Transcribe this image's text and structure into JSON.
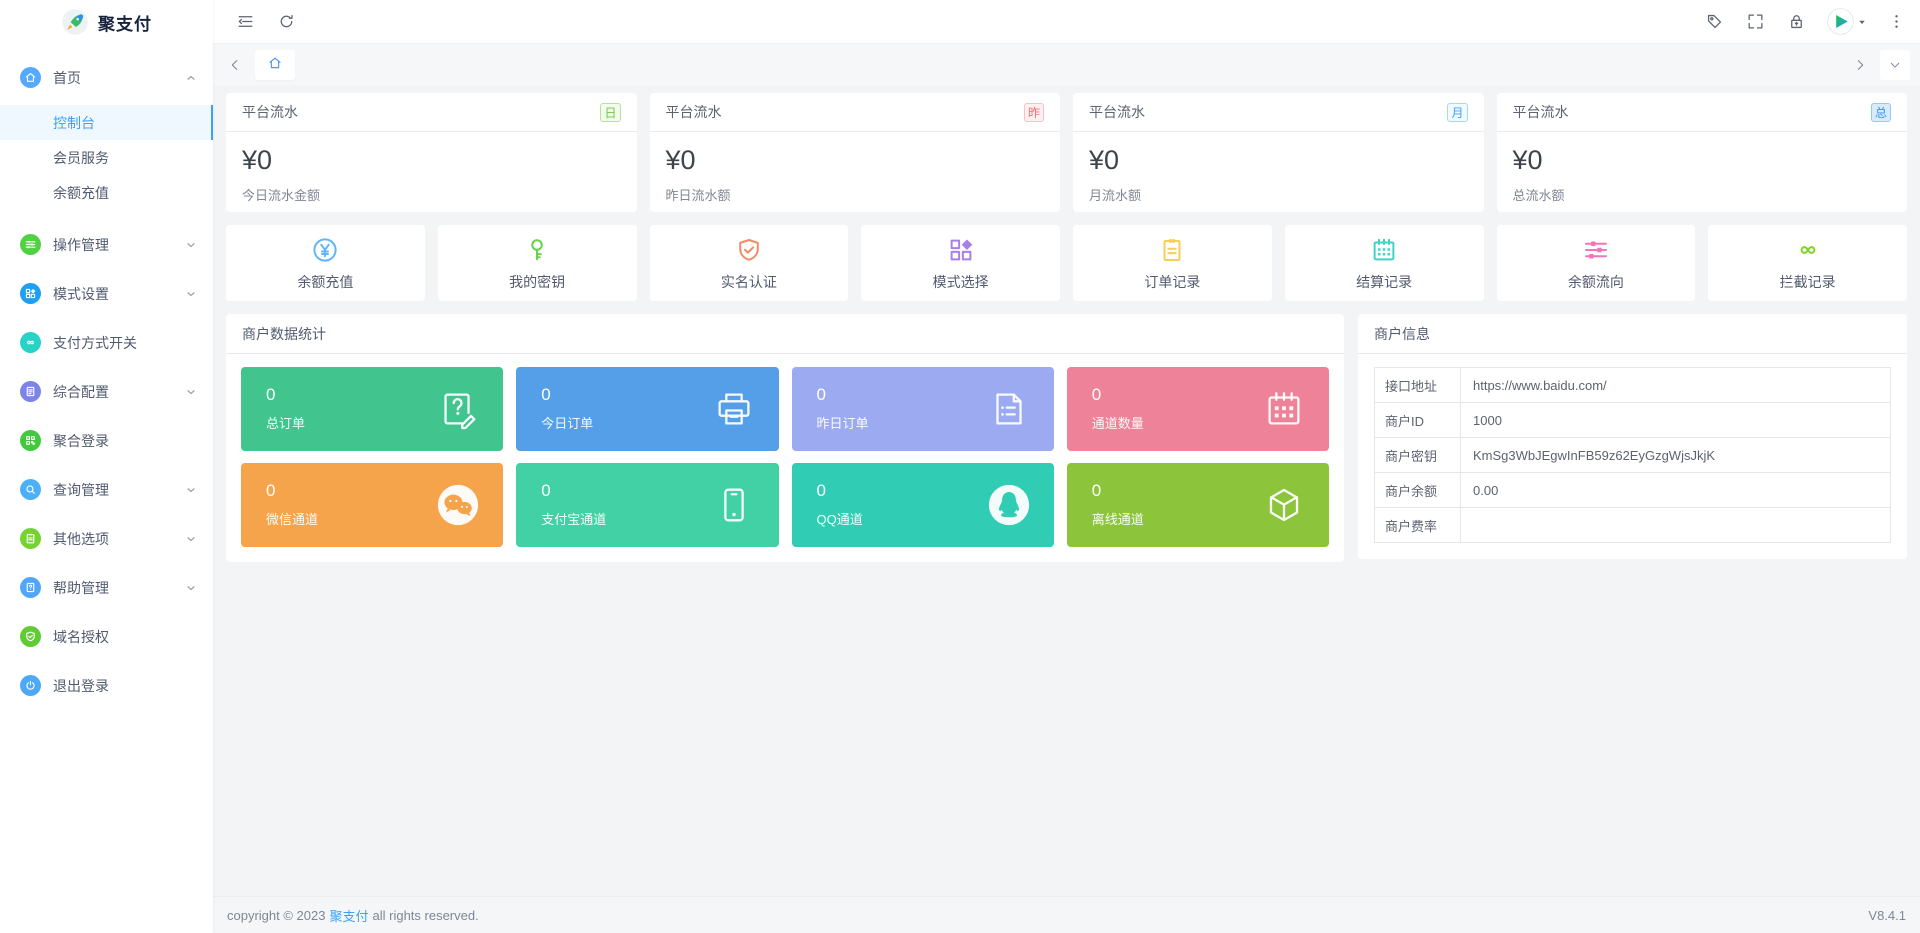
{
  "brand": {
    "name": "聚支付"
  },
  "sidebar": {
    "items": [
      {
        "label": "首页",
        "icon": "home",
        "color": "#55aaff",
        "chevron": "up",
        "children": [
          {
            "label": "控制台",
            "active": true
          },
          {
            "label": "会员服务",
            "active": false
          },
          {
            "label": "余额充值",
            "active": false
          }
        ]
      },
      {
        "label": "操作管理",
        "icon": "sliders",
        "color": "#52d043",
        "chevron": "down"
      },
      {
        "label": "模式设置",
        "icon": "blocks",
        "color": "#1e9ff2",
        "chevron": "down"
      },
      {
        "label": "支付方式开关",
        "icon": "infinity",
        "color": "#28d2c6"
      },
      {
        "label": "综合配置",
        "icon": "layers",
        "color": "#7e84e4",
        "chevron": "down"
      },
      {
        "label": "聚合登录",
        "icon": "qr",
        "color": "#43c93e"
      },
      {
        "label": "查询管理",
        "icon": "search",
        "color": "#4cb0f9",
        "chevron": "down"
      },
      {
        "label": "其他选项",
        "icon": "clipboard",
        "color": "#76d32f",
        "chevron": "down"
      },
      {
        "label": "帮助管理",
        "icon": "helpdoc",
        "color": "#52a6f7",
        "chevron": "down"
      },
      {
        "label": "域名授权",
        "icon": "shield",
        "color": "#61cb33"
      },
      {
        "label": "退出登录",
        "icon": "power",
        "color": "#4da9f8"
      }
    ]
  },
  "topbar": {
    "left_icons": [
      "collapse-sidebar",
      "refresh"
    ],
    "right_icons": [
      "tag",
      "fullscreen",
      "lock"
    ],
    "avatar_caret_icon": "caret-down",
    "more_icon": "more-vertical"
  },
  "tabbar": {
    "left_nav_icon": "chevron-left",
    "tabs": [
      {
        "icon": "home",
        "active": true
      }
    ],
    "right_nav_icons": [
      "chevron-right",
      "chevron-down"
    ]
  },
  "stat_cards": [
    {
      "title": "平台流水",
      "badge": "日",
      "badge_color": "#6fc73f",
      "badge_bg": "#f2fbed",
      "badge_border": "#b5e39b",
      "value": "¥0",
      "label": "今日流水金额"
    },
    {
      "title": "平台流水",
      "badge": "昨",
      "badge_color": "#f56c6c",
      "badge_bg": "#feeff0",
      "badge_border": "#f8c3c4",
      "value": "¥0",
      "label": "昨日流水额"
    },
    {
      "title": "平台流水",
      "badge": "月",
      "badge_color": "#3ba3f8",
      "badge_bg": "#f3faff",
      "badge_border": "#a7d6fb",
      "value": "¥0",
      "label": "月流水额"
    },
    {
      "title": "平台流水",
      "badge": "总",
      "badge_color": "#3494f0",
      "badge_bg": "#d8ebfd",
      "badge_border": "#93c8f8",
      "value": "¥0",
      "label": "总流水额"
    }
  ],
  "shortcuts": [
    {
      "label": "余额充值",
      "icon": "yen",
      "color": "#64b5f8"
    },
    {
      "label": "我的密钥",
      "icon": "key",
      "color": "#66d24b"
    },
    {
      "label": "实名认证",
      "icon": "shield",
      "color": "#f08c64"
    },
    {
      "label": "模式选择",
      "icon": "blocks",
      "color": "#aa7ee8"
    },
    {
      "label": "订单记录",
      "icon": "clipboard",
      "color": "#f7cf52"
    },
    {
      "label": "结算记录",
      "icon": "calendar",
      "color": "#3ed4c5"
    },
    {
      "label": "余额流向",
      "icon": "sliders",
      "color": "#f772b7"
    },
    {
      "label": "拦截记录",
      "icon": "infinity",
      "color": "#7ed321"
    }
  ],
  "merchant_stats": {
    "title": "商户数据统计",
    "tiles": [
      {
        "value": "0",
        "label": "总订单",
        "color": "#41c48e",
        "icon": "docq"
      },
      {
        "value": "0",
        "label": "今日订单",
        "color": "#549fe8",
        "icon": "printer"
      },
      {
        "value": "0",
        "label": "昨日订单",
        "color": "#9caaf1",
        "icon": "doclist"
      },
      {
        "value": "0",
        "label": "通道数量",
        "color": "#ee8298",
        "icon": "calendar"
      },
      {
        "value": "0",
        "label": "微信通道",
        "color": "#f6a44b",
        "icon": "wechat"
      },
      {
        "value": "0",
        "label": "支付宝通道",
        "color": "#42d1a4",
        "icon": "phone"
      },
      {
        "value": "0",
        "label": "QQ通道",
        "color": "#30ccb4",
        "icon": "qq"
      },
      {
        "value": "0",
        "label": "离线通道",
        "color": "#8cc53c",
        "icon": "cube"
      }
    ]
  },
  "merchant_info": {
    "title": "商户信息",
    "rows": [
      {
        "label": "接口地址",
        "value": "https://www.baidu.com/"
      },
      {
        "label": "商户ID",
        "value": "1000"
      },
      {
        "label": "商户密钥",
        "value": "KmSg3WbJEgwInFB59z62EyGzgWjsJkjK"
      },
      {
        "label": "商户余额",
        "value": "0.00"
      },
      {
        "label": "商户费率",
        "value": ""
      }
    ]
  },
  "footer": {
    "copyright_prefix": "copyright © 2023",
    "brand_link": "聚支付",
    "copyright_suffix": "all rights reserved.",
    "version": "V8.4.1"
  }
}
